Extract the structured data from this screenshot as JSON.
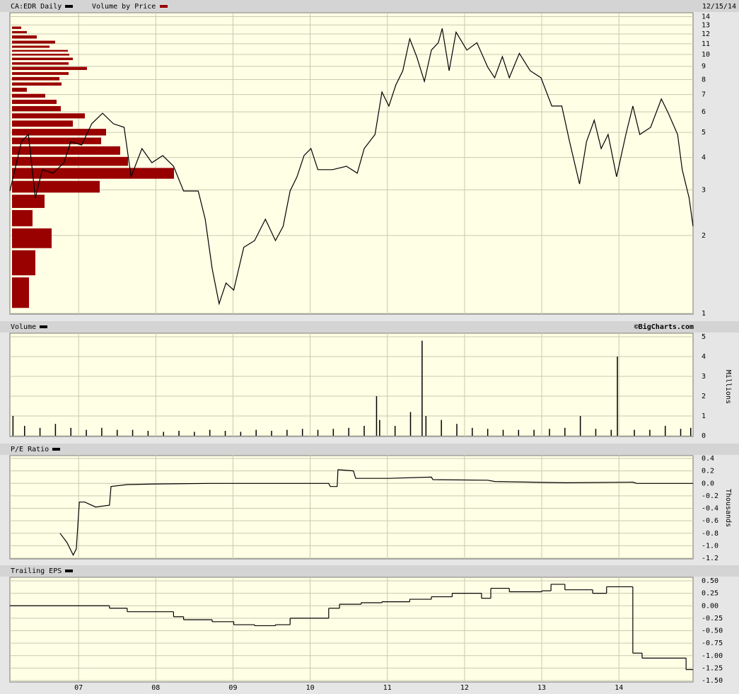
{
  "chart_data": [
    {
      "type": "line",
      "date": "12/15/14",
      "log_scale": true,
      "grid": true,
      "xlim": [
        2006.11,
        2014.96
      ],
      "ylim": [
        1,
        14
      ],
      "yticks": [
        1,
        2,
        3,
        4,
        5,
        6,
        7,
        8,
        9,
        10,
        11,
        12,
        13,
        14
      ],
      "x": [
        2006.11,
        2006.26,
        2006.35,
        2006.44,
        2006.53,
        2006.67,
        2006.81,
        2006.9,
        2007.04,
        2007.17,
        2007.31,
        2007.45,
        2007.59,
        2007.68,
        2007.82,
        2007.95,
        2008.09,
        2008.23,
        2008.36,
        2008.55,
        2008.64,
        2008.73,
        2008.82,
        2008.91,
        2009.01,
        2009.14,
        2009.28,
        2009.42,
        2009.55,
        2009.65,
        2009.74,
        2009.83,
        2009.92,
        2010.01,
        2010.1,
        2010.29,
        2010.47,
        2010.61,
        2010.7,
        2010.84,
        2010.93,
        2011.02,
        2011.11,
        2011.2,
        2011.29,
        2011.38,
        2011.48,
        2011.57,
        2011.66,
        2011.71,
        2011.8,
        2011.89,
        2012.03,
        2012.16,
        2012.3,
        2012.39,
        2012.49,
        2012.58,
        2012.71,
        2012.85,
        2012.99,
        2013.13,
        2013.26,
        2013.36,
        2013.49,
        2013.58,
        2013.68,
        2013.77,
        2013.86,
        2013.97,
        2014.09,
        2014.18,
        2014.27,
        2014.41,
        2014.55,
        2014.64,
        2014.76,
        2014.82,
        2014.91,
        2014.96
      ],
      "series": [
        {
          "name": "CA:EDR Daily",
          "color": "#000000",
          "values": [
            2.97,
            4.61,
            4.91,
            2.79,
            3.59,
            3.48,
            3.82,
            4.61,
            4.47,
            5.4,
            5.93,
            5.4,
            5.23,
            3.37,
            4.33,
            3.82,
            4.07,
            3.7,
            2.97,
            2.97,
            2.31,
            1.49,
            1.09,
            1.31,
            1.23,
            1.8,
            1.91,
            2.31,
            1.91,
            2.17,
            2.97,
            3.37,
            4.07,
            4.33,
            3.59,
            3.59,
            3.7,
            3.48,
            4.33,
            4.91,
            7.16,
            6.32,
            7.63,
            8.65,
            11.5,
            9.81,
            7.87,
            10.4,
            11.1,
            12.6,
            8.65,
            12.2,
            10.4,
            11.1,
            8.93,
            8.13,
            9.81,
            8.13,
            10.1,
            8.65,
            8.13,
            6.32,
            6.32,
            4.61,
            3.16,
            4.61,
            5.57,
            4.33,
            4.91,
            3.37,
            4.91,
            6.32,
            4.91,
            5.23,
            6.73,
            5.93,
            4.91,
            3.59,
            2.79,
            2.17
          ]
        }
      ],
      "volume_by_price": {
        "name": "Volume by Price",
        "color": "#990000",
        "bins": [
          1.04,
          1.39,
          1.77,
          2.15,
          2.53,
          2.9,
          3.28,
          3.68,
          4.06,
          4.46,
          4.82,
          5.21,
          5.61,
          5.98,
          6.38,
          6.75,
          7.11,
          7.51,
          7.87,
          8.26,
          8.63,
          9.04,
          9.42,
          9.81,
          10.16,
          10.51,
          10.92,
          11.41,
          11.96,
          12.43,
          12.94
        ],
        "values": [
          24,
          33,
          56,
          29,
          46,
          124,
          229,
          164,
          153,
          126,
          133,
          86,
          103,
          69,
          63,
          47,
          21,
          70,
          67,
          80,
          106,
          80,
          86,
          81,
          79,
          53,
          61,
          35,
          21,
          13
        ]
      }
    },
    {
      "type": "bar",
      "source": "©BigCharts.com",
      "y_label": "Millions",
      "grid": true,
      "xlim": [
        2006.11,
        2014.96
      ],
      "ylim": [
        0,
        5
      ],
      "yticks": [
        0,
        1,
        2,
        3,
        4,
        5
      ],
      "x": [
        2006.15,
        2006.3,
        2006.5,
        2006.7,
        2006.9,
        2007.1,
        2007.3,
        2007.5,
        2007.7,
        2007.9,
        2008.1,
        2008.3,
        2008.5,
        2008.7,
        2008.9,
        2009.1,
        2009.3,
        2009.5,
        2009.7,
        2009.9,
        2010.1,
        2010.3,
        2010.5,
        2010.7,
        2010.86,
        2010.9,
        2011.1,
        2011.3,
        2011.45,
        2011.5,
        2011.7,
        2011.9,
        2012.1,
        2012.3,
        2012.5,
        2012.7,
        2012.9,
        2013.1,
        2013.3,
        2013.5,
        2013.7,
        2013.9,
        2013.98,
        2014.2,
        2014.4,
        2014.6,
        2014.8,
        2014.93
      ],
      "series": [
        {
          "name": "Volume",
          "color": "#000000",
          "values": [
            1.0,
            0.5,
            0.4,
            0.6,
            0.4,
            0.3,
            0.4,
            0.3,
            0.3,
            0.25,
            0.2,
            0.25,
            0.2,
            0.3,
            0.25,
            0.2,
            0.3,
            0.25,
            0.3,
            0.35,
            0.3,
            0.35,
            0.4,
            0.5,
            2.0,
            0.8,
            0.5,
            1.2,
            4.8,
            1.0,
            0.8,
            0.6,
            0.4,
            0.35,
            0.3,
            0.3,
            0.3,
            0.35,
            0.4,
            1.0,
            0.35,
            0.3,
            4.0,
            0.3,
            0.3,
            0.5,
            0.35,
            0.4
          ]
        }
      ]
    },
    {
      "type": "line",
      "y_label": "Thousands",
      "grid": true,
      "xlim": [
        2006.11,
        2014.96
      ],
      "ylim": [
        -1.2,
        0.4
      ],
      "yticks": [
        -1.2,
        {
          "value": -1,
          "label": "-1.0"
        },
        -0.8,
        -0.6,
        -0.4,
        -0.2,
        {
          "value": 0,
          "label": "0.0"
        },
        0.2,
        0.4
      ],
      "x": [
        2006.76,
        2006.85,
        2006.93,
        2006.97,
        2007.01,
        2007.08,
        2007.22,
        2007.4,
        2007.42,
        2007.63,
        2008.0,
        2008.73,
        2010.24,
        2010.26,
        2010.35,
        2010.36,
        2010.56,
        2010.59,
        2011.02,
        2011.57,
        2011.59,
        2012.3,
        2012.39,
        2013.31,
        2014.18,
        2014.23,
        2014.96
      ],
      "series": [
        {
          "name": "P/E Ratio",
          "color": "#000000",
          "values": [
            -0.8,
            -0.95,
            -1.15,
            -1.05,
            -0.3,
            -0.3,
            -0.38,
            -0.35,
            -0.05,
            -0.02,
            -0.01,
            0.0,
            0.0,
            -0.05,
            -0.05,
            0.22,
            0.2,
            0.08,
            0.08,
            0.1,
            0.06,
            0.05,
            0.03,
            0.01,
            0.02,
            0.0,
            0.0
          ]
        }
      ]
    },
    {
      "type": "step",
      "grid": true,
      "xlim": [
        2006.11,
        2014.96
      ],
      "ylim": [
        -1.5,
        0.5
      ],
      "yticks": [
        {
          "value": -1.5,
          "label": "-1.50"
        },
        -1.25,
        {
          "value": -1,
          "label": "-1.00"
        },
        -0.75,
        {
          "value": -0.5,
          "label": "-0.50"
        },
        -0.25,
        {
          "value": 0,
          "label": "0.00"
        },
        0.25,
        {
          "value": 0.5,
          "label": "0.50"
        }
      ],
      "xticks": [
        {
          "value": 2007,
          "label": "07"
        },
        {
          "value": 2008,
          "label": "08"
        },
        {
          "value": 2009,
          "label": "09"
        },
        {
          "value": 2010,
          "label": "10"
        },
        {
          "value": 2011,
          "label": "11"
        },
        {
          "value": 2012,
          "label": "12"
        },
        {
          "value": 2013,
          "label": "13"
        },
        {
          "value": 2014,
          "label": "14"
        }
      ],
      "x": [
        2006.11,
        2007.4,
        2007.63,
        2008.23,
        2008.36,
        2008.73,
        2009.01,
        2009.28,
        2009.55,
        2009.74,
        2010.24,
        2010.38,
        2010.66,
        2010.93,
        2011.29,
        2011.57,
        2011.84,
        2012.22,
        2012.34,
        2012.58,
        2013.0,
        2013.12,
        2013.3,
        2013.66,
        2013.84,
        2014.18,
        2014.3,
        2014.87
      ],
      "series": [
        {
          "name": "Trailing EPS",
          "color": "#000000",
          "values": [
            0.0,
            -0.05,
            -0.12,
            -0.22,
            -0.28,
            -0.32,
            -0.38,
            -0.4,
            -0.38,
            -0.25,
            -0.05,
            0.03,
            0.06,
            0.08,
            0.13,
            0.18,
            0.25,
            0.15,
            0.35,
            0.28,
            0.3,
            0.43,
            0.32,
            0.25,
            0.38,
            -0.95,
            -1.05,
            -1.28
          ]
        }
      ]
    }
  ]
}
